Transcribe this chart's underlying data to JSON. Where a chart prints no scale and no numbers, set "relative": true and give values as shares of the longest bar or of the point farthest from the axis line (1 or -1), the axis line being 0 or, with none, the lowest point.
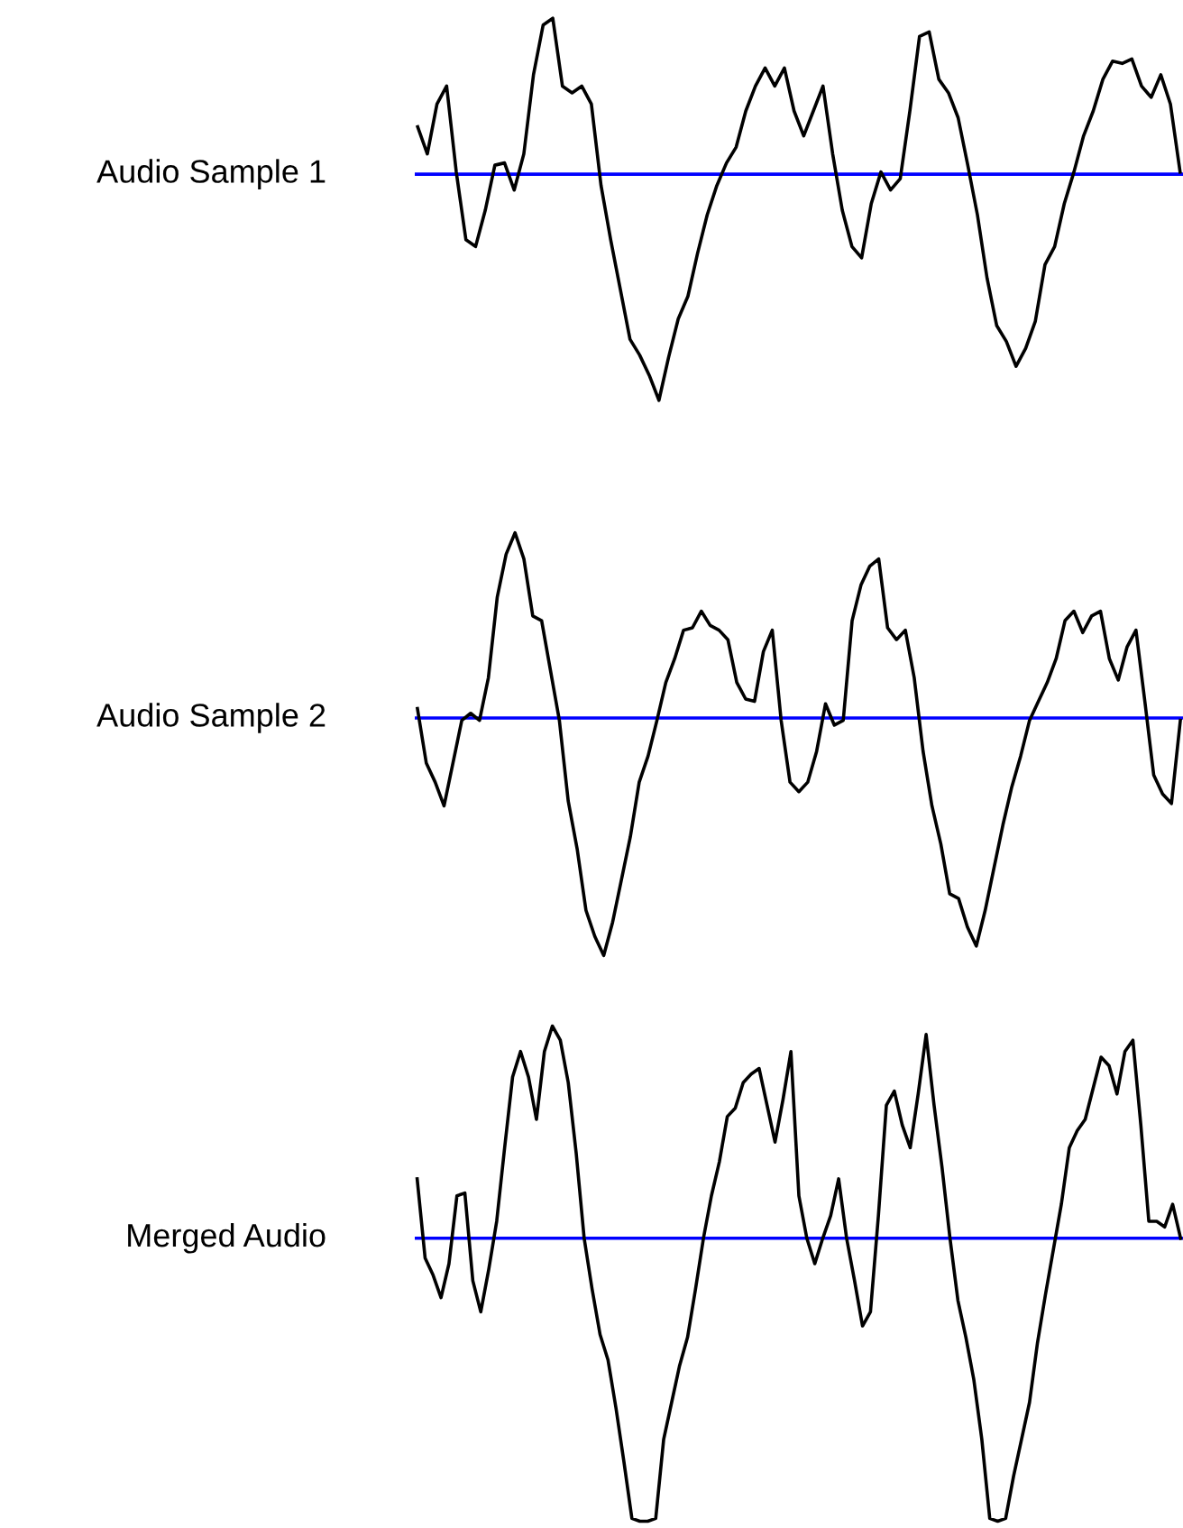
{
  "chart_data": [
    {
      "type": "line",
      "relative": true,
      "ylabel": "Audio Sample 1",
      "color": "#000000",
      "categories": [
        null,
        null,
        null,
        null,
        null,
        null,
        null,
        null,
        null,
        null,
        null,
        null,
        null,
        null,
        null,
        null,
        null,
        null,
        null,
        null,
        null,
        null,
        null,
        null,
        null,
        null,
        null,
        null,
        null,
        null,
        null,
        null,
        null,
        null,
        null,
        null,
        null,
        null,
        null,
        null,
        null,
        null,
        null,
        null,
        null,
        null,
        null,
        null,
        null,
        null,
        null,
        null,
        null,
        null,
        null,
        null,
        null,
        null,
        null,
        null,
        null,
        null,
        null,
        null,
        null,
        null,
        null,
        null,
        null,
        null,
        null,
        null,
        null,
        null,
        null,
        null,
        null,
        null,
        null,
        null
      ],
      "values": [
        0.21,
        0.09,
        0.31,
        0.39,
        0.01,
        -0.29,
        -0.32,
        -0.16,
        0.04,
        0.05,
        -0.07,
        0.09,
        0.44,
        0.66,
        0.69,
        0.39,
        0.36,
        0.39,
        0.31,
        -0.05,
        -0.29,
        -0.51,
        -0.73,
        -0.8,
        -0.89,
        -1,
        -0.81,
        -0.64,
        -0.54,
        -0.35,
        -0.18,
        -0.05,
        0.05,
        0.12,
        0.28,
        0.39,
        0.47,
        0.39,
        0.47,
        0.28,
        0.17,
        0.28,
        0.39,
        0.09,
        -0.16,
        -0.32,
        -0.37,
        -0.13,
        0.01,
        -0.07,
        -0.02,
        0.28,
        0.61,
        0.63,
        0.42,
        0.36,
        0.25,
        0.04,
        -0.18,
        -0.46,
        -0.67,
        -0.74,
        -0.85,
        -0.77,
        -0.65,
        -0.4,
        -0.32,
        -0.13,
        0.01,
        0.17,
        0.28,
        0.42,
        0.5,
        0.49,
        0.51,
        0.39,
        0.34,
        0.44,
        0.31,
        0.01
      ],
      "ref_lines": [
        {
          "axis": "y",
          "value": 0,
          "color": "#0000ff"
        }
      ]
    },
    {
      "type": "line",
      "relative": true,
      "ylabel": "Audio Sample 2",
      "color": "#000000",
      "categories": [
        null,
        null,
        null,
        null,
        null,
        null,
        null,
        null,
        null,
        null,
        null,
        null,
        null,
        null,
        null,
        null,
        null,
        null,
        null,
        null,
        null,
        null,
        null,
        null,
        null,
        null,
        null,
        null,
        null,
        null,
        null,
        null,
        null,
        null,
        null,
        null,
        null,
        null,
        null,
        null,
        null,
        null,
        null,
        null,
        null,
        null,
        null,
        null,
        null,
        null,
        null,
        null,
        null,
        null,
        null,
        null,
        null,
        null,
        null,
        null,
        null,
        null,
        null,
        null,
        null,
        null,
        null,
        null,
        null,
        null,
        null,
        null,
        null,
        null,
        null,
        null,
        null,
        null,
        null,
        null,
        null,
        null,
        null,
        null,
        null,
        null,
        null
      ],
      "values": [
        0.04,
        -0.19,
        -0.27,
        -0.37,
        -0.19,
        -0.01,
        0.02,
        -0.01,
        0.17,
        0.51,
        0.69,
        0.78,
        0.67,
        0.43,
        0.41,
        0.2,
        -0.01,
        -0.35,
        -0.55,
        -0.81,
        -0.92,
        -1,
        -0.86,
        -0.68,
        -0.5,
        -0.27,
        -0.16,
        -0.01,
        0.15,
        0.25,
        0.37,
        0.38,
        0.45,
        0.39,
        0.37,
        0.33,
        0.15,
        0.08,
        0.07,
        0.28,
        0.37,
        -0.01,
        -0.27,
        -0.31,
        -0.27,
        -0.14,
        0.06,
        -0.03,
        -0.01,
        0.41,
        0.56,
        0.64,
        0.67,
        0.38,
        0.33,
        0.37,
        0.17,
        -0.14,
        -0.37,
        -0.53,
        -0.74,
        -0.76,
        -0.88,
        -0.96,
        -0.81,
        -0.63,
        -0.45,
        -0.29,
        -0.16,
        -0.01,
        0.07,
        0.15,
        0.25,
        0.41,
        0.45,
        0.36,
        0.43,
        0.45,
        0.25,
        0.16,
        0.3,
        0.37,
        0.07,
        -0.24,
        -0.32,
        -0.36,
        -0.01
      ],
      "ref_lines": [
        {
          "axis": "y",
          "value": 0,
          "color": "#0000ff"
        }
      ]
    },
    {
      "type": "line",
      "relative": true,
      "ylabel": "Merged Audio",
      "color": "#000000",
      "categories": [
        null,
        null,
        null,
        null,
        null,
        null,
        null,
        null,
        null,
        null,
        null,
        null,
        null,
        null,
        null,
        null,
        null,
        null,
        null,
        null,
        null,
        null,
        null,
        null,
        null,
        null,
        null,
        null,
        null,
        null,
        null,
        null,
        null,
        null,
        null,
        null,
        null,
        null,
        null,
        null,
        null,
        null,
        null,
        null,
        null,
        null,
        null,
        null,
        null,
        null,
        null,
        null,
        null,
        null,
        null,
        null,
        null,
        null,
        null,
        null,
        null,
        null,
        null,
        null,
        null,
        null,
        null,
        null,
        null,
        null,
        null,
        null,
        null,
        null,
        null,
        null,
        null,
        null,
        null,
        null,
        null,
        null,
        null,
        null,
        null,
        null,
        null,
        null,
        null,
        null,
        null,
        null,
        null,
        null,
        null,
        null,
        null
      ],
      "values": [
        0.21,
        -0.07,
        -0.13,
        -0.21,
        -0.09,
        0.15,
        0.16,
        -0.15,
        -0.26,
        -0.11,
        0.06,
        0.32,
        0.57,
        0.66,
        0.57,
        0.42,
        0.66,
        0.75,
        0.7,
        0.55,
        0.3,
        0,
        -0.18,
        -0.34,
        -0.43,
        -0.6,
        -0.79,
        -0.99,
        -1,
        -1,
        -0.99,
        -0.71,
        -0.58,
        -0.45,
        -0.35,
        -0.18,
        0,
        0.15,
        0.27,
        0.43,
        0.46,
        0.55,
        0.58,
        0.6,
        0.47,
        0.34,
        0.49,
        0.66,
        0.15,
        0,
        -0.09,
        0,
        0.08,
        0.21,
        0,
        -0.15,
        -0.31,
        -0.26,
        0.08,
        0.47,
        0.52,
        0.4,
        0.32,
        0.51,
        0.72,
        0.47,
        0.25,
        0,
        -0.22,
        -0.35,
        -0.5,
        -0.71,
        -0.99,
        -1,
        -0.99,
        -0.84,
        -0.71,
        -0.58,
        -0.37,
        -0.2,
        -0.04,
        0.12,
        0.32,
        0.38,
        0.42,
        0.53,
        0.64,
        0.61,
        0.51,
        0.66,
        0.7,
        0.4,
        0.06,
        0.06,
        0.04,
        0.12,
        0
      ],
      "ref_lines": [
        {
          "axis": "y",
          "value": 0,
          "color": "#0000ff"
        }
      ]
    }
  ]
}
